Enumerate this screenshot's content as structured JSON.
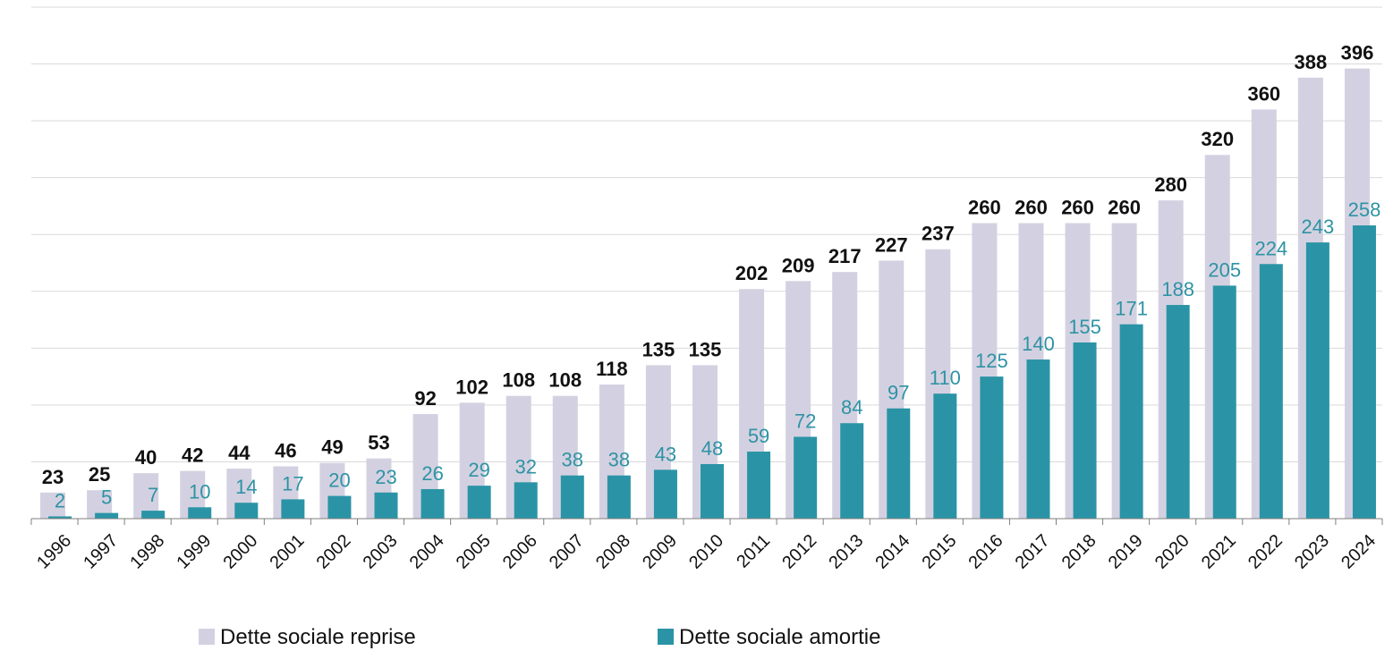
{
  "chart_data": {
    "type": "bar",
    "categories": [
      "1996",
      "1997",
      "1998",
      "1999",
      "2000",
      "2001",
      "2002",
      "2003",
      "2004",
      "2005",
      "2006",
      "2007",
      "2008",
      "2009",
      "2010",
      "2011",
      "2012",
      "2013",
      "2014",
      "2015",
      "2016",
      "2017",
      "2018",
      "2019",
      "2020",
      "2021",
      "2022",
      "2023",
      "2024"
    ],
    "series": [
      {
        "name": "Dette sociale reprise",
        "color": "#d3d1e1",
        "label_color": "#111111",
        "values": [
          23,
          25,
          40,
          42,
          44,
          46,
          49,
          53,
          92,
          102,
          108,
          108,
          118,
          135,
          135,
          202,
          209,
          217,
          227,
          237,
          260,
          260,
          260,
          260,
          280,
          320,
          360,
          388,
          396
        ]
      },
      {
        "name": "Dette sociale amortie",
        "color": "#2a94a6",
        "label_color": "#2e93a4",
        "values": [
          2,
          5,
          7,
          10,
          14,
          17,
          20,
          23,
          26,
          29,
          32,
          38,
          38,
          43,
          48,
          59,
          72,
          84,
          97,
          110,
          125,
          140,
          155,
          171,
          188,
          205,
          224,
          243,
          258
        ]
      }
    ],
    "ylim": [
      0,
      450
    ],
    "yticks": [
      0,
      50,
      100,
      150,
      200,
      250,
      300,
      350,
      400,
      450
    ],
    "grid": true,
    "legend": "bottom"
  }
}
